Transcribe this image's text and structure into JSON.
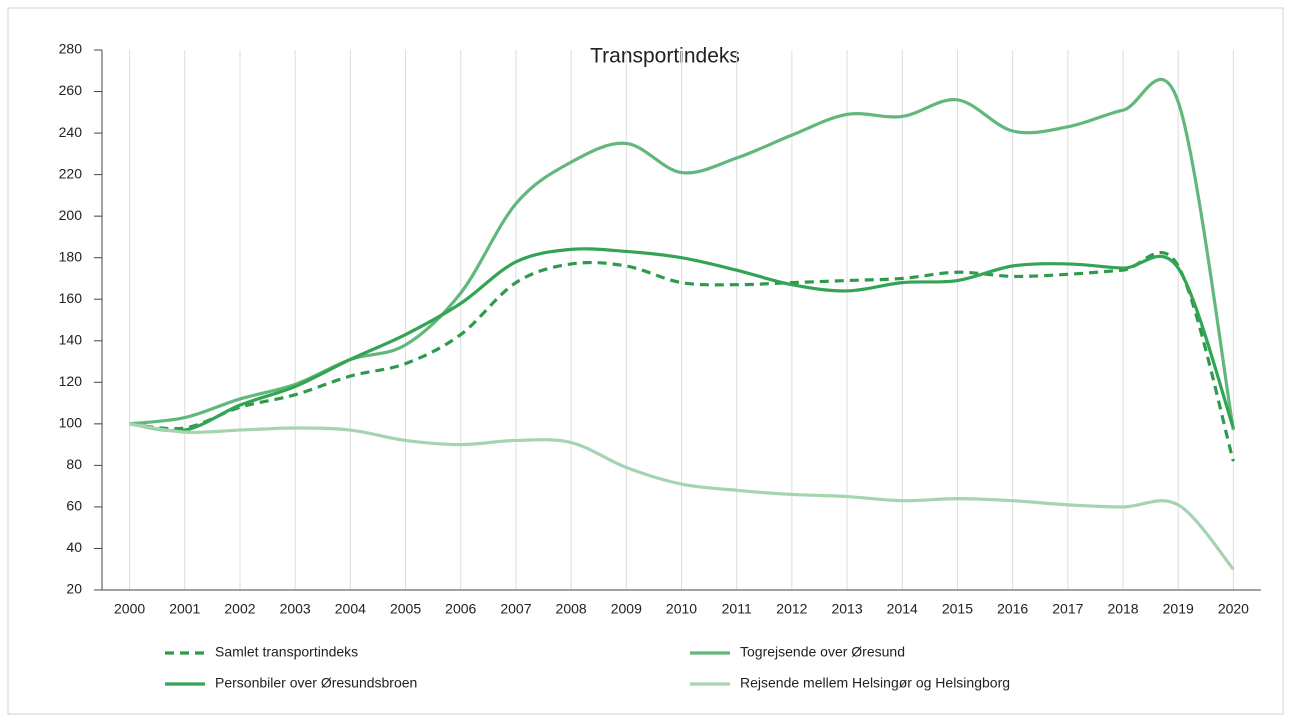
{
  "chart_data": {
    "type": "line",
    "title": "Transportindeks",
    "categories": [
      "2000",
      "2001",
      "2002",
      "2003",
      "2004",
      "2005",
      "2006",
      "2007",
      "2008",
      "2009",
      "2010",
      "2011",
      "2012",
      "2013",
      "2014",
      "2015",
      "2016",
      "2017",
      "2018",
      "2019",
      "2020"
    ],
    "series": [
      {
        "name": "Samlet transportindeks",
        "color": "#2e9a4c",
        "line_style": "dashed",
        "values": [
          100,
          98,
          108,
          114,
          123,
          129,
          143,
          168,
          177,
          176,
          168,
          167,
          168,
          169,
          170,
          173,
          171,
          172,
          174,
          176,
          82
        ]
      },
      {
        "name": "Togrejsende over Øresund",
        "color": "#62b77c",
        "line_style": "solid",
        "values": [
          100,
          103,
          112,
          119,
          131,
          138,
          163,
          206,
          226,
          235,
          221,
          228,
          239,
          249,
          248,
          256,
          241,
          243,
          251,
          255,
          97
        ]
      },
      {
        "name": "Personbiler over Øresundsbroen",
        "color": "#33a354",
        "line_style": "solid",
        "values": [
          100,
          97,
          109,
          118,
          131,
          143,
          158,
          178,
          184,
          183,
          180,
          174,
          167,
          164,
          168,
          169,
          176,
          177,
          175,
          175,
          98
        ]
      },
      {
        "name": "Rejsende mellem Helsingør og Helsingborg",
        "color": "#a6d4b3",
        "line_style": "solid",
        "values": [
          100,
          96,
          97,
          98,
          97,
          92,
          90,
          92,
          91,
          79,
          71,
          68,
          66,
          65,
          63,
          64,
          63,
          61,
          60,
          61,
          30
        ]
      }
    ],
    "ylim": [
      20,
      280
    ],
    "yticks": [
      20,
      40,
      60,
      80,
      100,
      120,
      140,
      160,
      180,
      200,
      220,
      240,
      260,
      280
    ],
    "grid": true
  }
}
